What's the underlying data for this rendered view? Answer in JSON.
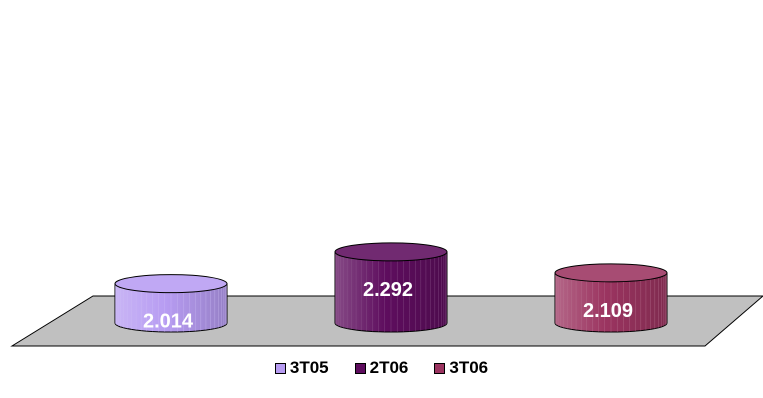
{
  "chart_data": {
    "type": "bar",
    "style": "3d-cylinder",
    "categories": [
      "3T05",
      "2T06",
      "3T06"
    ],
    "values": [
      2.014,
      2.292,
      2.109
    ],
    "value_labels": [
      "2.014",
      "2.292",
      "2.109"
    ],
    "colors": [
      "#b79cf2",
      "#5e0d5e",
      "#9b3460"
    ],
    "floor_color": "#c0c0c0",
    "value_label_color": "#ffffff",
    "legend_position": "bottom",
    "grid": false,
    "axes_visible": false,
    "title": "",
    "xlabel": "",
    "ylabel": ""
  }
}
